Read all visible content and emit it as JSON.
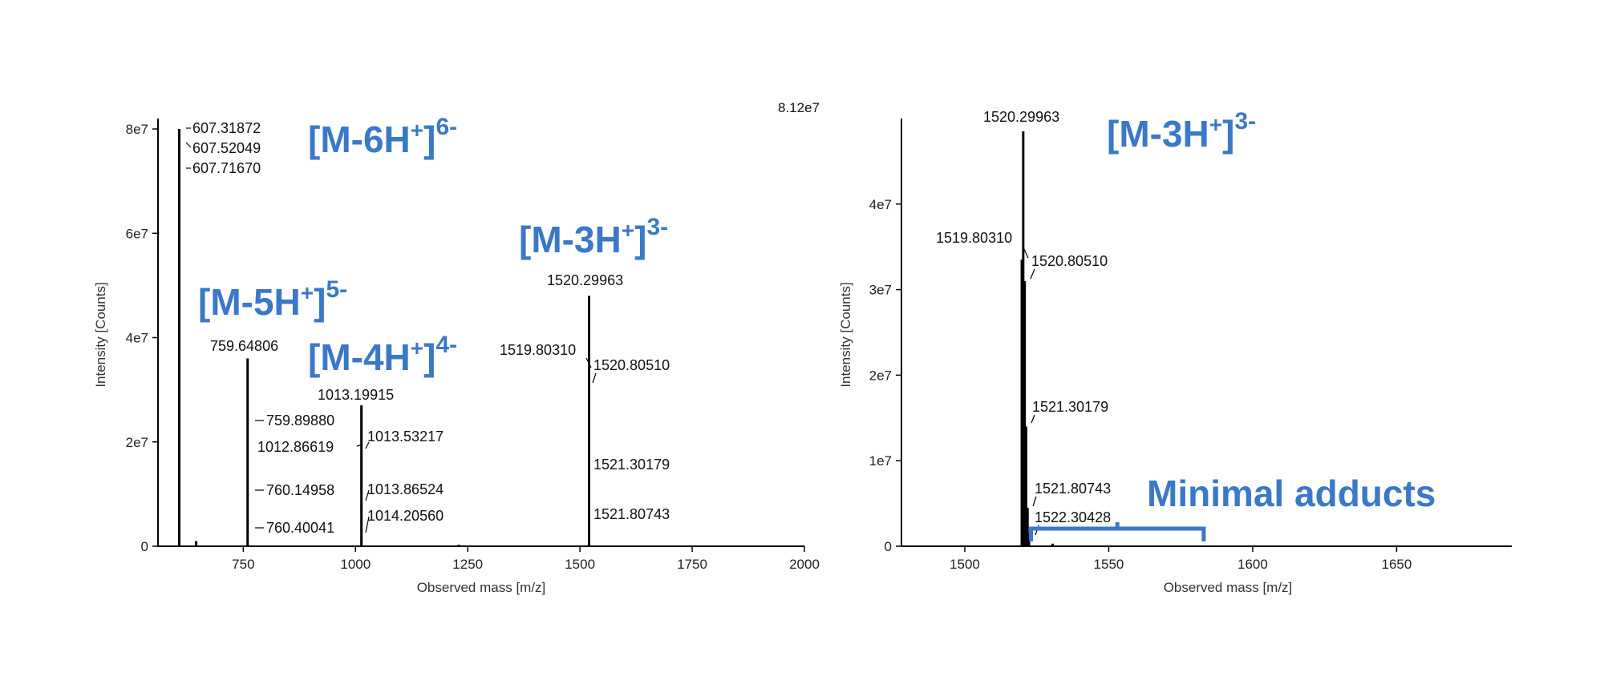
{
  "chart_data": [
    {
      "type": "bar",
      "subtype": "mass-spectrum",
      "title": "",
      "xlabel": "Observed mass [m/z]",
      "ylabel": "Intensity [Counts]",
      "xlim": [
        560,
        2000
      ],
      "ylim": [
        0,
        82000000
      ],
      "xticks": [
        {
          "value": 750,
          "label": "750"
        },
        {
          "value": 1000,
          "label": "1000"
        },
        {
          "value": 1250,
          "label": "1250"
        },
        {
          "value": 1500,
          "label": "1500"
        },
        {
          "value": 1750,
          "label": "1750"
        },
        {
          "value": 2000,
          "label": "2000"
        }
      ],
      "yticks": [
        {
          "value": 0,
          "label": "0"
        },
        {
          "value": 20000000,
          "label": "2e7"
        },
        {
          "value": 40000000,
          "label": "4e7"
        },
        {
          "value": 60000000,
          "label": "6e7"
        },
        {
          "value": 80000000,
          "label": "8e7"
        }
      ],
      "max_intensity_label": "8.12e7",
      "peaks": [
        {
          "x": 607.31872,
          "y": 80000000
        },
        {
          "x": 759.64806,
          "y": 36000000
        },
        {
          "x": 1013.19915,
          "y": 27000000
        },
        {
          "x": 1520.29963,
          "y": 48000000
        },
        {
          "x": 645,
          "y": 1000000
        },
        {
          "x": 1230,
          "y": 300000
        }
      ],
      "peak_labels": [
        {
          "text": "607.31872",
          "x": 607.31872
        },
        {
          "text": "607.52049",
          "x": 607.52049
        },
        {
          "text": "607.71670",
          "x": 607.7167
        },
        {
          "text": "759.64806",
          "x": 759.64806
        },
        {
          "text": "759.89880",
          "x": 759.8988
        },
        {
          "text": "760.14958",
          "x": 760.14958
        },
        {
          "text": "760.40041",
          "x": 760.40041
        },
        {
          "text": "1013.19915",
          "x": 1013.19915
        },
        {
          "text": "1012.86619",
          "x": 1012.86619
        },
        {
          "text": "1013.53217",
          "x": 1013.53217
        },
        {
          "text": "1013.86524",
          "x": 1013.86524
        },
        {
          "text": "1014.20560",
          "x": 1014.2056
        },
        {
          "text": "1520.29963",
          "x": 1520.29963
        },
        {
          "text": "1519.80310",
          "x": 1519.8031
        },
        {
          "text": "1520.80510",
          "x": 1520.8051
        },
        {
          "text": "1521.30179",
          "x": 1521.30179
        },
        {
          "text": "1521.80743",
          "x": 1521.80743
        }
      ],
      "annotations": [
        {
          "base": "[M-6H",
          "sup1": "+",
          "close": "]",
          "sup2": "6-"
        },
        {
          "base": "[M-5H",
          "sup1": "+",
          "close": "]",
          "sup2": "5-"
        },
        {
          "base": "[M-4H",
          "sup1": "+",
          "close": "]",
          "sup2": "4-"
        },
        {
          "base": "[M-3H",
          "sup1": "+",
          "close": "]",
          "sup2": "3-"
        }
      ],
      "annotation_color": "#3a78c8"
    },
    {
      "type": "bar",
      "subtype": "mass-spectrum",
      "title": "",
      "xlabel": "Observed mass [m/z]",
      "ylabel": "Intensity [Counts]",
      "xlim": [
        1478,
        1690
      ],
      "ylim": [
        0,
        50000000
      ],
      "xticks": [
        {
          "value": 1500,
          "label": "1500"
        },
        {
          "value": 1550,
          "label": "1550"
        },
        {
          "value": 1600,
          "label": "1600"
        },
        {
          "value": 1650,
          "label": "1650"
        }
      ],
      "yticks": [
        {
          "value": 0,
          "label": "0"
        },
        {
          "value": 10000000,
          "label": "1e7"
        },
        {
          "value": 20000000,
          "label": "2e7"
        },
        {
          "value": 30000000,
          "label": "3e7"
        },
        {
          "value": 40000000,
          "label": "4e7"
        }
      ],
      "peaks": [
        {
          "x": 1519.8031,
          "y": 33500000
        },
        {
          "x": 1520.29963,
          "y": 48500000
        },
        {
          "x": 1520.8051,
          "y": 31000000
        },
        {
          "x": 1521.30179,
          "y": 14000000
        },
        {
          "x": 1521.80743,
          "y": 4500000
        },
        {
          "x": 1522.30428,
          "y": 1500000
        },
        {
          "x": 1530.5,
          "y": 300000
        }
      ],
      "peak_labels": [
        {
          "text": "1520.29963",
          "x": 1520.29963
        },
        {
          "text": "1519.80310",
          "x": 1519.8031
        },
        {
          "text": "1520.80510",
          "x": 1520.8051
        },
        {
          "text": "1521.30179",
          "x": 1521.30179
        },
        {
          "text": "1521.80743",
          "x": 1521.80743
        },
        {
          "text": "1522.30428",
          "x": 1522.30428
        }
      ],
      "annotations": [
        {
          "base": "[M-3H",
          "sup1": "+",
          "close": "]",
          "sup2": "3-"
        }
      ],
      "adduct_bracket": {
        "label": "Minimal adducts",
        "x_start": 1523,
        "x_end": 1583
      },
      "annotation_color": "#3a78c8"
    }
  ]
}
